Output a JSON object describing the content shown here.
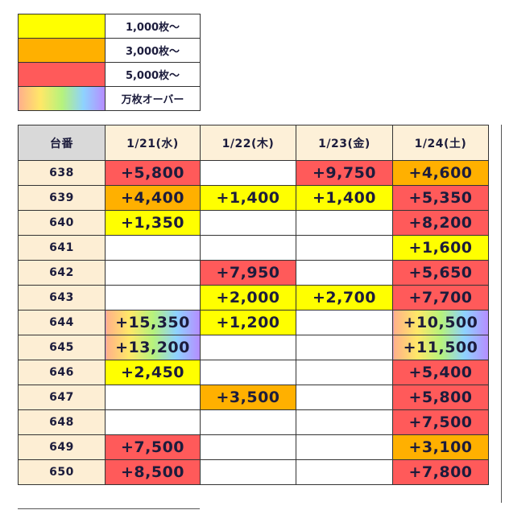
{
  "legend": [
    {
      "color": "#ffff00",
      "label": "1,000枚〜"
    },
    {
      "color": "#ffb000",
      "label": "3,000枚〜"
    },
    {
      "color": "#ff5a5a",
      "label": "5,000枚〜"
    },
    {
      "color": "linear-gradient(to right, #ffb08a, #ffe868, #b6f27c, #8ed2ff, #b68cff)",
      "label": "万枚オーバー"
    }
  ],
  "table": {
    "header": [
      "台番",
      "1/21(水)",
      "1/22(木)",
      "1/23(金)",
      "1/24(土)"
    ],
    "rows": [
      {
        "label": "638",
        "cells": [
          {
            "text": "+5,800",
            "color": "#ff5a5a"
          },
          null,
          {
            "text": "+9,750",
            "color": "#ff5a5a"
          },
          {
            "text": "+4,600",
            "color": "#ffb000"
          }
        ]
      },
      {
        "label": "639",
        "cells": [
          {
            "text": "+4,400",
            "color": "#ffb000"
          },
          {
            "text": "+1,400",
            "color": "#ffff00"
          },
          {
            "text": "+1,400",
            "color": "#ffff00"
          },
          {
            "text": "+5,350",
            "color": "#ff5a5a"
          }
        ]
      },
      {
        "label": "640",
        "cells": [
          {
            "text": "+1,350",
            "color": "#ffff00"
          },
          null,
          null,
          {
            "text": "+8,200",
            "color": "#ff5a5a"
          }
        ]
      },
      {
        "label": "641",
        "cells": [
          null,
          null,
          null,
          {
            "text": "+1,600",
            "color": "#ffff00"
          }
        ]
      },
      {
        "label": "642",
        "cells": [
          null,
          {
            "text": "+7,950",
            "color": "#ff5a5a"
          },
          null,
          {
            "text": "+5,650",
            "color": "#ff5a5a"
          }
        ]
      },
      {
        "label": "643",
        "cells": [
          null,
          {
            "text": "+2,000",
            "color": "#ffff00"
          },
          {
            "text": "+2,700",
            "color": "#ffff00"
          },
          {
            "text": "+7,700",
            "color": "#ff5a5a"
          }
        ]
      },
      {
        "label": "644",
        "cells": [
          {
            "text": "+15,350",
            "color": "linear-gradient(to right, #ffb08a, #ffe868, #b6f27c, #8ed2ff, #b68cff)"
          },
          {
            "text": "+1,200",
            "color": "#ffff00"
          },
          null,
          {
            "text": "+10,500",
            "color": "linear-gradient(to right, #ffb08a, #ffe868, #b6f27c, #8ed2ff, #b68cff)"
          }
        ]
      },
      {
        "label": "645",
        "cells": [
          {
            "text": "+13,200",
            "color": "linear-gradient(to right, #ffb08a, #ffe868, #b6f27c, #8ed2ff, #b68cff)"
          },
          null,
          null,
          {
            "text": "+11,500",
            "color": "linear-gradient(to right, #ffb08a, #ffe868, #b6f27c, #8ed2ff, #b68cff)"
          }
        ]
      },
      {
        "label": "646",
        "cells": [
          {
            "text": "+2,450",
            "color": "#ffff00"
          },
          null,
          null,
          {
            "text": "+5,400",
            "color": "#ff5a5a"
          }
        ]
      },
      {
        "label": "647",
        "cells": [
          null,
          {
            "text": "+3,500",
            "color": "#ffb000"
          },
          null,
          {
            "text": "+5,800",
            "color": "#ff5a5a"
          }
        ]
      },
      {
        "label": "648",
        "cells": [
          null,
          null,
          null,
          {
            "text": "+7,500",
            "color": "#ff5a5a"
          }
        ]
      },
      {
        "label": "649",
        "cells": [
          {
            "text": "+7,500",
            "color": "#ff5a5a"
          },
          null,
          null,
          {
            "text": "+3,100",
            "color": "#ffb000"
          }
        ]
      },
      {
        "label": "650",
        "cells": [
          {
            "text": "+8,500",
            "color": "#ff5a5a"
          },
          null,
          null,
          {
            "text": "+7,800",
            "color": "#ff5a5a"
          }
        ]
      }
    ]
  }
}
